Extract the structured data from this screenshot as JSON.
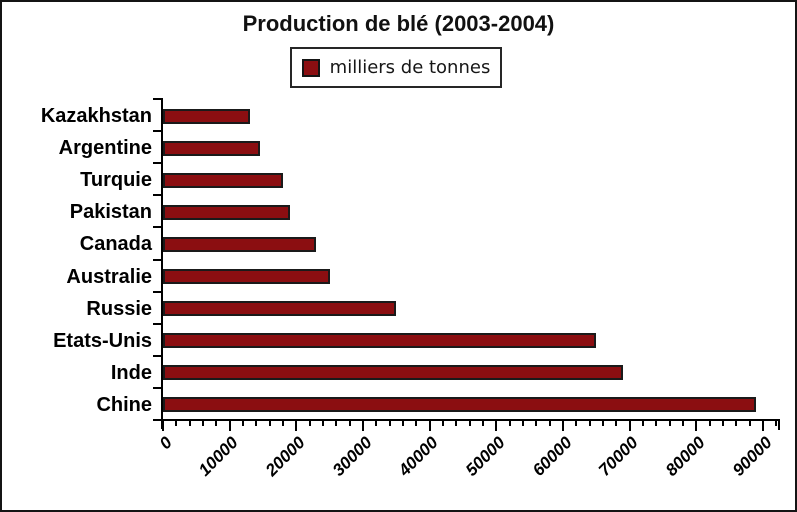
{
  "page": {
    "background_color": "#ffffff",
    "border_color": "#141414"
  },
  "chart_data": {
    "type": "bar",
    "orientation": "horizontal",
    "title": "Production de blé (2003-2004)",
    "legend": {
      "label": "milliers de tonnes",
      "position": "top-center",
      "swatch_color": "#8b0e11"
    },
    "categories": [
      "Kazakhstan",
      "Argentine",
      "Turquie",
      "Pakistan",
      "Canada",
      "Australie",
      "Russie",
      "Etats-Unis",
      "Inde",
      "Chine"
    ],
    "values": [
      13000,
      14500,
      18000,
      19000,
      23000,
      25000,
      35000,
      65000,
      69000,
      89000
    ],
    "xlabel": "",
    "ylabel": "",
    "xlim": [
      0,
      90000
    ],
    "x_axis": {
      "major_step": 10000,
      "minor_step": 2000,
      "overshoot_units": 2000,
      "tick_labels": [
        "0",
        "10000",
        "20000",
        "30000",
        "40000",
        "50000",
        "60000",
        "70000",
        "80000",
        "90000"
      ],
      "tick_label_rotation_deg": -45
    },
    "grid": false,
    "bar_color": "#8b0e11",
    "bar_border_color": "#1a1a1a",
    "axis_color": "#000000",
    "text_color": "#000000"
  }
}
